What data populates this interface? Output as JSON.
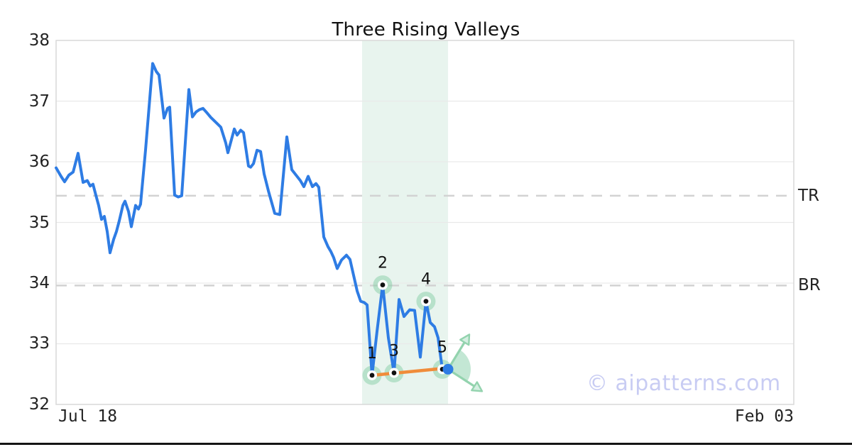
{
  "title": "Three Rising Valleys",
  "watermark": "© aipatterns.com",
  "colors": {
    "price_line": "#2e7ce4",
    "trendline": "#f08c3a",
    "pattern_band": "#e8f4ee",
    "marker_halo": "rgba(134,206,166,0.5)",
    "projection_green": "#93d3ae",
    "projection_fill": "rgba(146,212,177,0.55)",
    "arrowhead_fill": "#d4efe1",
    "gridline": "#e9e9e9",
    "dashed_level": "#d2d2d2",
    "frame_border": "#d9d9d9",
    "watermark_color": "#c8ccf3",
    "bottom_bar": "#141414",
    "dot_black": "#111111",
    "current_dot_blue": "#2e7ce4"
  },
  "chart_data": {
    "type": "line",
    "title": "Three Rising Valleys",
    "y_tick_labels": [
      "38",
      "37",
      "36",
      "35",
      "34",
      "33",
      "32"
    ],
    "x_tick_labels": [
      "Jul 18",
      "Feb 03"
    ],
    "ylim": [
      32,
      38
    ],
    "y_ticks": [
      32,
      33,
      34,
      35,
      36,
      37,
      38
    ],
    "grid": "horizontal-only",
    "legend": "none",
    "levels": [
      {
        "label": "TR",
        "value": 35.44
      },
      {
        "label": "BR",
        "value": 33.96
      }
    ],
    "series": [
      {
        "name": "price",
        "points": [
          [
            0.0,
            35.9
          ],
          [
            0.0067,
            35.76
          ],
          [
            0.0115,
            35.67
          ],
          [
            0.0173,
            35.78
          ],
          [
            0.0231,
            35.83
          ],
          [
            0.0298,
            36.14
          ],
          [
            0.0366,
            35.66
          ],
          [
            0.0423,
            35.69
          ],
          [
            0.0462,
            35.6
          ],
          [
            0.05,
            35.63
          ],
          [
            0.0539,
            35.45
          ],
          [
            0.0577,
            35.28
          ],
          [
            0.0616,
            35.05
          ],
          [
            0.0654,
            35.1
          ],
          [
            0.0693,
            34.85
          ],
          [
            0.0731,
            34.5
          ],
          [
            0.078,
            34.72
          ],
          [
            0.0818,
            34.85
          ],
          [
            0.0857,
            35.03
          ],
          [
            0.0905,
            35.28
          ],
          [
            0.0934,
            35.35
          ],
          [
            0.0982,
            35.18
          ],
          [
            0.102,
            34.93
          ],
          [
            0.1078,
            35.28
          ],
          [
            0.1116,
            35.22
          ],
          [
            0.1145,
            35.3
          ],
          [
            0.1213,
            36.2
          ],
          [
            0.1309,
            37.62
          ],
          [
            0.1357,
            37.49
          ],
          [
            0.1395,
            37.43
          ],
          [
            0.1463,
            36.72
          ],
          [
            0.1511,
            36.88
          ],
          [
            0.154,
            36.9
          ],
          [
            0.1607,
            35.45
          ],
          [
            0.1655,
            35.42
          ],
          [
            0.1703,
            35.44
          ],
          [
            0.18,
            37.19
          ],
          [
            0.1848,
            36.74
          ],
          [
            0.1896,
            36.82
          ],
          [
            0.1944,
            36.86
          ],
          [
            0.1992,
            36.88
          ],
          [
            0.205,
            36.8
          ],
          [
            0.2098,
            36.73
          ],
          [
            0.2175,
            36.64
          ],
          [
            0.2233,
            36.57
          ],
          [
            0.23,
            36.31
          ],
          [
            0.2329,
            36.15
          ],
          [
            0.2416,
            36.54
          ],
          [
            0.2454,
            36.44
          ],
          [
            0.2502,
            36.52
          ],
          [
            0.2541,
            36.48
          ],
          [
            0.2608,
            35.93
          ],
          [
            0.2637,
            35.91
          ],
          [
            0.2676,
            35.97
          ],
          [
            0.2724,
            36.19
          ],
          [
            0.2772,
            36.17
          ],
          [
            0.282,
            35.8
          ],
          [
            0.2878,
            35.52
          ],
          [
            0.2964,
            35.15
          ],
          [
            0.3032,
            35.13
          ],
          [
            0.3128,
            36.41
          ],
          [
            0.3195,
            35.87
          ],
          [
            0.3253,
            35.78
          ],
          [
            0.3311,
            35.69
          ],
          [
            0.3359,
            35.59
          ],
          [
            0.3417,
            35.76
          ],
          [
            0.3475,
            35.59
          ],
          [
            0.3523,
            35.64
          ],
          [
            0.3561,
            35.58
          ],
          [
            0.3629,
            34.76
          ],
          [
            0.3686,
            34.6
          ],
          [
            0.3725,
            34.52
          ],
          [
            0.3763,
            34.42
          ],
          [
            0.3811,
            34.24
          ],
          [
            0.3869,
            34.38
          ],
          [
            0.3936,
            34.46
          ],
          [
            0.3984,
            34.39
          ],
          [
            0.4081,
            33.87
          ],
          [
            0.4129,
            33.7
          ],
          [
            0.4177,
            33.68
          ],
          [
            0.4216,
            33.64
          ],
          [
            0.4283,
            32.48
          ],
          [
            0.435,
            33.2
          ],
          [
            0.4427,
            33.97
          ],
          [
            0.4504,
            33.1
          ],
          [
            0.4581,
            32.52
          ],
          [
            0.4649,
            33.73
          ],
          [
            0.4716,
            33.45
          ],
          [
            0.4793,
            33.56
          ],
          [
            0.486,
            33.55
          ],
          [
            0.4937,
            32.78
          ],
          [
            0.5014,
            33.7
          ],
          [
            0.5072,
            33.35
          ],
          [
            0.513,
            33.28
          ],
          [
            0.5178,
            33.1
          ],
          [
            0.5236,
            32.58
          ],
          [
            0.5313,
            32.58
          ]
        ]
      }
    ],
    "pattern": {
      "name": "Three Rising Valleys",
      "region_x": [
        0.4148,
        0.5313
      ],
      "markers": [
        {
          "label": "1",
          "x": 0.4283,
          "value": 32.48,
          "kind": "valley"
        },
        {
          "label": "2",
          "x": 0.4427,
          "value": 33.97,
          "kind": "peak"
        },
        {
          "label": "3",
          "x": 0.4581,
          "value": 32.52,
          "kind": "valley"
        },
        {
          "label": "4",
          "x": 0.5014,
          "value": 33.7,
          "kind": "peak"
        },
        {
          "label": "5",
          "x": 0.5236,
          "value": 32.58,
          "kind": "valley"
        }
      ],
      "trendline": {
        "x1": 0.4283,
        "v1": 32.48,
        "x2": 0.53,
        "v2": 32.6
      },
      "current_dot": {
        "x": 0.5313,
        "value": 32.58
      },
      "projection": {
        "up_arrow": "up-right",
        "down_arrow": "down-right"
      }
    }
  }
}
